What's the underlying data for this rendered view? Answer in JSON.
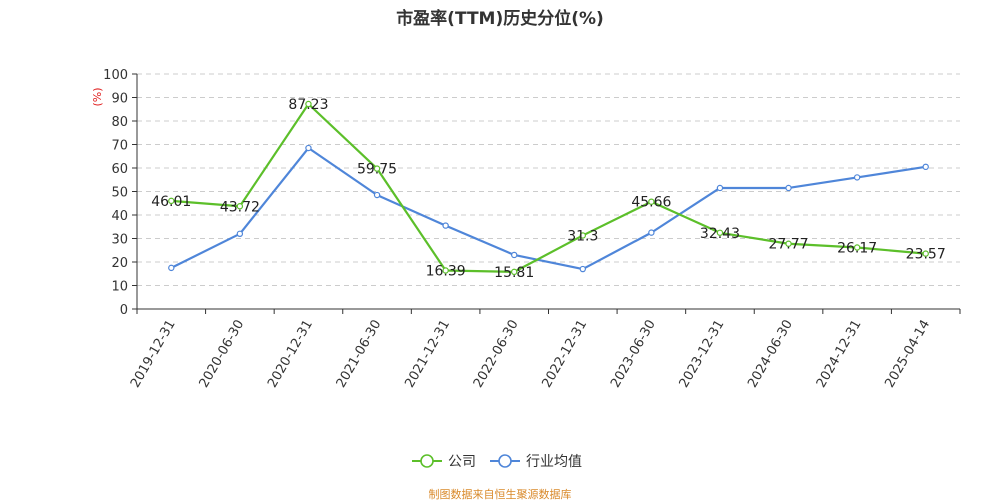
{
  "title": "市盈率(TTM)历史分位(%)",
  "footer": "制图数据来自恒生聚源数据库",
  "chart_data": {
    "type": "line",
    "title": "市盈率(TTM)历史分位(%)",
    "ylabel": "(%)",
    "ylim": [
      0,
      100
    ],
    "yticks": [
      0,
      10,
      20,
      30,
      40,
      50,
      60,
      70,
      80,
      90,
      100
    ],
    "grid": true,
    "legend_position": "bottom-center",
    "categories": [
      "2019-12-31",
      "2020-06-30",
      "2020-12-31",
      "2021-06-30",
      "2021-12-31",
      "2022-06-30",
      "2022-12-31",
      "2023-06-30",
      "2023-12-31",
      "2024-06-30",
      "2024-12-31",
      "2025-04-14"
    ],
    "series": [
      {
        "name": "公司",
        "color": "#5cbf2a",
        "values": [
          46.01,
          43.72,
          87.23,
          59.75,
          16.39,
          15.81,
          31.3,
          45.66,
          32.43,
          27.77,
          26.17,
          23.57
        ],
        "labels": [
          "46.01",
          "43.72",
          "87.23",
          "59.75",
          "16.39",
          "15.81",
          "31.3",
          "45.66",
          "32.43",
          "27.77",
          "26.17",
          "23.57"
        ]
      },
      {
        "name": "行业均值",
        "color": "#4f86d9",
        "values": [
          17.5,
          32,
          68.5,
          48.5,
          35.5,
          23,
          17,
          32.5,
          51.5,
          51.5,
          56,
          60.5
        ]
      }
    ]
  }
}
